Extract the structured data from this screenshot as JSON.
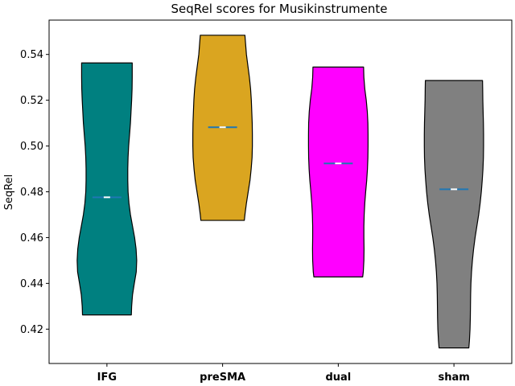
{
  "chart_data": {
    "type": "violin",
    "title": "SeqRel scores for Musikinstrumente",
    "xlabel": "",
    "ylabel": "SeqRel",
    "ylim": [
      0.405,
      0.555
    ],
    "yticks": [
      0.42,
      0.44,
      0.46,
      0.48,
      0.5,
      0.52,
      0.54
    ],
    "ytick_labels": [
      "0.42",
      "0.44",
      "0.46",
      "0.48",
      "0.50",
      "0.52",
      "0.54"
    ],
    "grid": false,
    "categories": [
      "IFG",
      "preSMA",
      "dual",
      "sham"
    ],
    "series": [
      {
        "category": "IFG",
        "color": "#008080",
        "min": 0.4262,
        "max": 0.5363,
        "median": 0.4776,
        "profile": [
          [
            0.4262,
            0.82
          ],
          [
            0.43,
            0.83
          ],
          [
            0.435,
            0.86
          ],
          [
            0.44,
            0.92
          ],
          [
            0.445,
            0.985
          ],
          [
            0.45,
            1.0
          ],
          [
            0.455,
            0.98
          ],
          [
            0.46,
            0.93
          ],
          [
            0.465,
            0.86
          ],
          [
            0.47,
            0.79
          ],
          [
            0.475,
            0.74
          ],
          [
            0.48,
            0.71
          ],
          [
            0.485,
            0.7
          ],
          [
            0.49,
            0.7
          ],
          [
            0.495,
            0.71
          ],
          [
            0.5,
            0.73
          ],
          [
            0.505,
            0.76
          ],
          [
            0.51,
            0.79
          ],
          [
            0.515,
            0.81
          ],
          [
            0.52,
            0.83
          ],
          [
            0.525,
            0.845
          ],
          [
            0.53,
            0.85
          ],
          [
            0.5363,
            0.85
          ]
        ]
      },
      {
        "category": "preSMA",
        "color": "#DAA520",
        "min": 0.4675,
        "max": 0.5484,
        "median": 0.5082,
        "profile": [
          [
            0.4675,
            0.73
          ],
          [
            0.47,
            0.75
          ],
          [
            0.475,
            0.8
          ],
          [
            0.48,
            0.86
          ],
          [
            0.485,
            0.92
          ],
          [
            0.49,
            0.96
          ],
          [
            0.495,
            0.99
          ],
          [
            0.5,
            1.0
          ],
          [
            0.505,
            1.0
          ],
          [
            0.51,
            0.995
          ],
          [
            0.515,
            0.98
          ],
          [
            0.52,
            0.965
          ],
          [
            0.525,
            0.94
          ],
          [
            0.53,
            0.9
          ],
          [
            0.535,
            0.85
          ],
          [
            0.54,
            0.8
          ],
          [
            0.545,
            0.77
          ],
          [
            0.5484,
            0.75
          ]
        ]
      },
      {
        "category": "dual",
        "color": "#FF00FF",
        "min": 0.4428,
        "max": 0.5345,
        "median": 0.4924,
        "profile": [
          [
            0.4428,
            0.82
          ],
          [
            0.445,
            0.84
          ],
          [
            0.45,
            0.86
          ],
          [
            0.455,
            0.865
          ],
          [
            0.46,
            0.86
          ],
          [
            0.465,
            0.86
          ],
          [
            0.47,
            0.87
          ],
          [
            0.475,
            0.89
          ],
          [
            0.48,
            0.92
          ],
          [
            0.485,
            0.955
          ],
          [
            0.49,
            0.98
          ],
          [
            0.495,
            0.995
          ],
          [
            0.5,
            1.0
          ],
          [
            0.505,
            1.0
          ],
          [
            0.51,
            0.995
          ],
          [
            0.515,
            0.975
          ],
          [
            0.52,
            0.94
          ],
          [
            0.525,
            0.89
          ],
          [
            0.53,
            0.86
          ],
          [
            0.5345,
            0.85
          ]
        ]
      },
      {
        "category": "sham",
        "color": "#808080",
        "min": 0.4118,
        "max": 0.5286,
        "median": 0.4811,
        "profile": [
          [
            0.4118,
            0.5
          ],
          [
            0.415,
            0.52
          ],
          [
            0.42,
            0.54
          ],
          [
            0.425,
            0.55
          ],
          [
            0.43,
            0.555
          ],
          [
            0.435,
            0.56
          ],
          [
            0.44,
            0.57
          ],
          [
            0.445,
            0.59
          ],
          [
            0.45,
            0.62
          ],
          [
            0.455,
            0.66
          ],
          [
            0.46,
            0.71
          ],
          [
            0.465,
            0.77
          ],
          [
            0.47,
            0.83
          ],
          [
            0.475,
            0.88
          ],
          [
            0.48,
            0.92
          ],
          [
            0.485,
            0.95
          ],
          [
            0.49,
            0.975
          ],
          [
            0.495,
            0.99
          ],
          [
            0.5,
            0.995
          ],
          [
            0.505,
            0.995
          ],
          [
            0.51,
            0.99
          ],
          [
            0.515,
            0.98
          ],
          [
            0.52,
            0.97
          ],
          [
            0.525,
            0.965
          ],
          [
            0.5286,
            0.96
          ]
        ]
      }
    ],
    "median_marker_color": "#1F77B4",
    "median_center_color": "#ffffff"
  }
}
